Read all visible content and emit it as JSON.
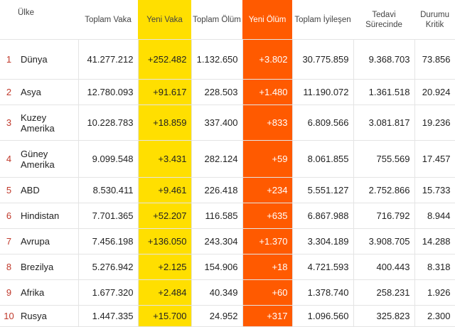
{
  "headers": {
    "country": "Ülke",
    "total_cases": "Toplam Vaka",
    "new_cases": "Yeni Vaka",
    "total_deaths": "Toplam Ölüm",
    "new_deaths": "Yeni Ölüm",
    "total_recovered": "Toplam İyileşen",
    "active": "Tedavi Sürecinde",
    "critical": "Durumu Kritik"
  },
  "rows": [
    {
      "rank": "1",
      "country": "Dünya",
      "total_cases": "41.277.212",
      "new_cases": "+252.482",
      "total_deaths": "1.132.650",
      "new_deaths": "+3.802",
      "total_recovered": "30.775.859",
      "active": "9.368.703",
      "critical": "73.856"
    },
    {
      "rank": "2",
      "country": "Asya",
      "total_cases": "12.780.093",
      "new_cases": "+91.617",
      "total_deaths": "228.503",
      "new_deaths": "+1.480",
      "total_recovered": "11.190.072",
      "active": "1.361.518",
      "critical": "20.924"
    },
    {
      "rank": "3",
      "country": "Kuzey Amerika",
      "total_cases": "10.228.783",
      "new_cases": "+18.859",
      "total_deaths": "337.400",
      "new_deaths": "+833",
      "total_recovered": "6.809.566",
      "active": "3.081.817",
      "critical": "19.236"
    },
    {
      "rank": "4",
      "country": "Güney Amerika",
      "total_cases": "9.099.548",
      "new_cases": "+3.431",
      "total_deaths": "282.124",
      "new_deaths": "+59",
      "total_recovered": "8.061.855",
      "active": "755.569",
      "critical": "17.457"
    },
    {
      "rank": "5",
      "country": "ABD",
      "total_cases": "8.530.411",
      "new_cases": "+9.461",
      "total_deaths": "226.418",
      "new_deaths": "+234",
      "total_recovered": "5.551.127",
      "active": "2.752.866",
      "critical": "15.733"
    },
    {
      "rank": "6",
      "country": "Hindistan",
      "total_cases": "7.701.365",
      "new_cases": "+52.207",
      "total_deaths": "116.585",
      "new_deaths": "+635",
      "total_recovered": "6.867.988",
      "active": "716.792",
      "critical": "8.944"
    },
    {
      "rank": "7",
      "country": "Avrupa",
      "total_cases": "7.456.198",
      "new_cases": "+136.050",
      "total_deaths": "243.304",
      "new_deaths": "+1.370",
      "total_recovered": "3.304.189",
      "active": "3.908.705",
      "critical": "14.288"
    },
    {
      "rank": "8",
      "country": "Brezilya",
      "total_cases": "5.276.942",
      "new_cases": "+2.125",
      "total_deaths": "154.906",
      "new_deaths": "+18",
      "total_recovered": "4.721.593",
      "active": "400.443",
      "critical": "8.318"
    },
    {
      "rank": "9",
      "country": "Afrika",
      "total_cases": "1.677.320",
      "new_cases": "+2.484",
      "total_deaths": "40.349",
      "new_deaths": "+60",
      "total_recovered": "1.378.740",
      "active": "258.231",
      "critical": "1.926"
    },
    {
      "rank": "10",
      "country": "Rusya",
      "total_cases": "1.447.335",
      "new_cases": "+15.700",
      "total_deaths": "24.952",
      "new_deaths": "+317",
      "total_recovered": "1.096.560",
      "active": "325.823",
      "critical": "2.300"
    }
  ],
  "colors": {
    "new_cases_bg": "#ffdf00",
    "new_deaths_bg": "#ff5a00",
    "rank_text": "#c0392b"
  }
}
